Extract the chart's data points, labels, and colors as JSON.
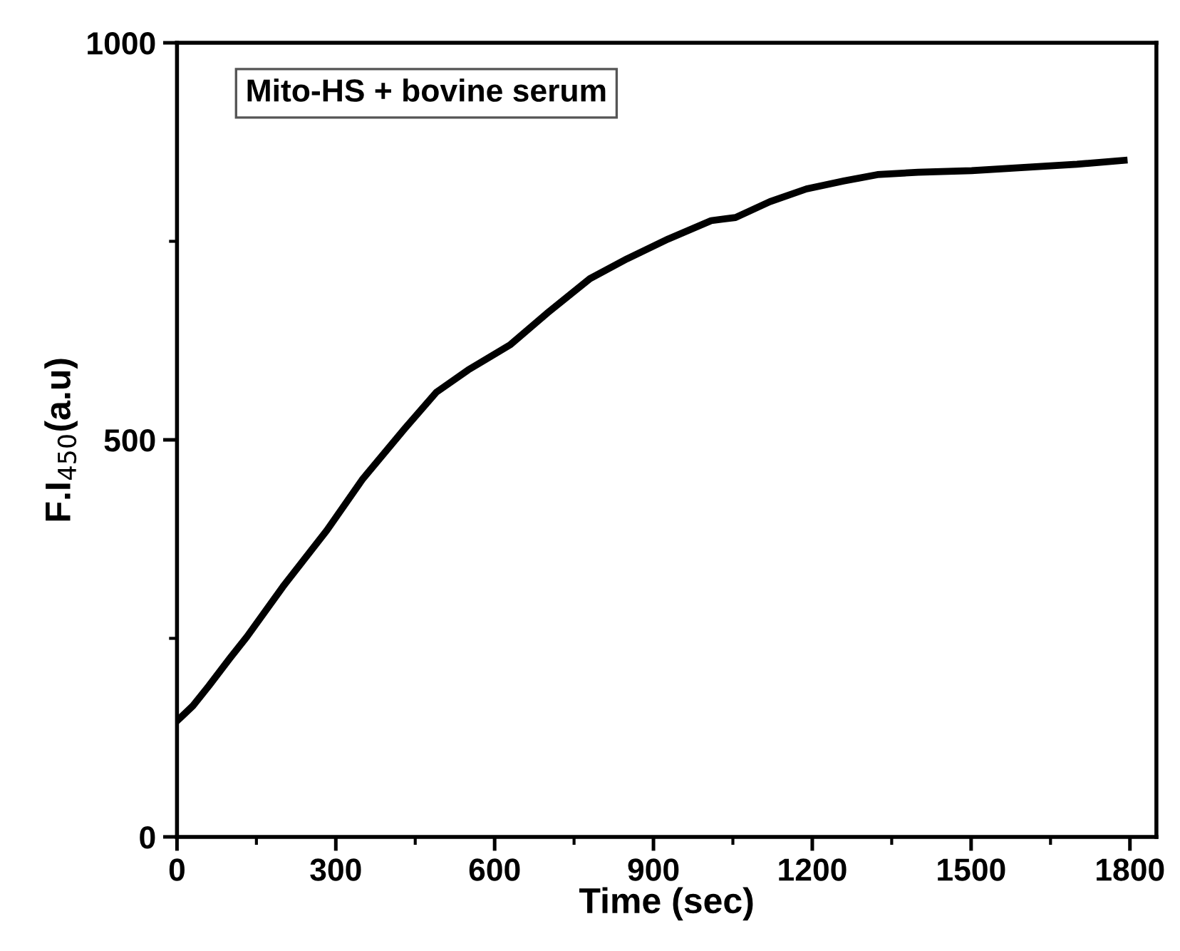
{
  "chart_data": {
    "type": "line",
    "xlabel": "Time (sec)",
    "ylabel": "F.I$_{450}$(a.u)",
    "annotations": [
      "Mito-HS + bovine serum"
    ],
    "series": [
      {
        "color": "#000000",
        "x": [
          0,
          30,
          60,
          100,
          132,
          200,
          283,
          350,
          430,
          490,
          550,
          630,
          700,
          780,
          850,
          928,
          1009,
          1055,
          1120,
          1189,
          1260,
          1323,
          1400,
          1501,
          1600,
          1700,
          1789
        ],
        "values": [
          146,
          165,
          190,
          225,
          252,
          315,
          386,
          450,
          514,
          560,
          588,
          620,
          660,
          703,
          728,
          753,
          776,
          780,
          800,
          816,
          826,
          834,
          837,
          839,
          843,
          847,
          852
        ]
      }
    ],
    "xlim": [
      0,
      1850
    ],
    "ylim": [
      0,
      1000
    ],
    "xticks": [
      0,
      300,
      600,
      900,
      1200,
      1500,
      1800
    ],
    "yticks": [
      0,
      500,
      1000
    ],
    "grid": false,
    "legend": false,
    "marker": "none",
    "line_style": "solid"
  }
}
